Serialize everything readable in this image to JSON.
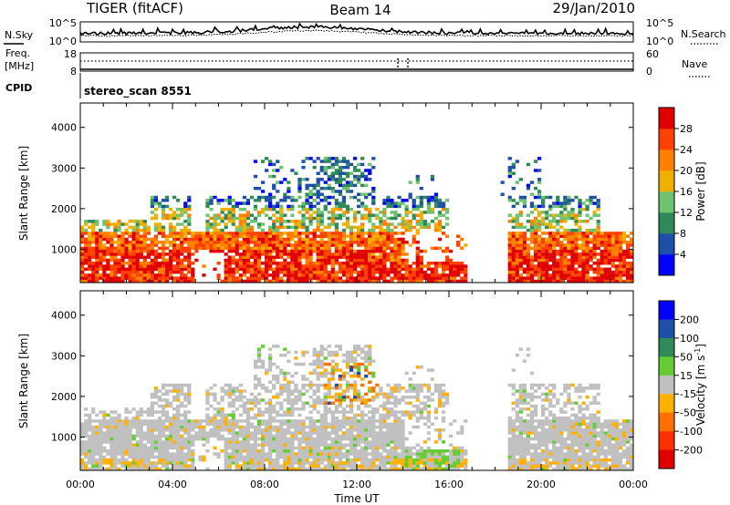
{
  "header": {
    "radar": "TIGER (fitACF)",
    "beam": "Beam 14",
    "date": "29/Jan/2010"
  },
  "noise_panel": {
    "left_label": "N.Sky",
    "right_label": "N.Search",
    "left_ticks": [
      "10^5",
      "10^0"
    ],
    "right_ticks": [
      "10^5",
      "10^0"
    ]
  },
  "freq_panel": {
    "left_label_line1": "Freq.",
    "left_label_line2": "[MHz]",
    "right_label": "Nave",
    "left_ticks": [
      "18",
      "8"
    ],
    "right_ticks": [
      "60",
      "0"
    ]
  },
  "cpid_panel": {
    "label": "CPID",
    "program": "stereo_scan 8551"
  },
  "colors": {
    "power_scale": [
      "#0000ff",
      "#1f4fa8",
      "#2e8b57",
      "#6fc26f",
      "#f0b000",
      "#ff8000",
      "#ff4000",
      "#e00000"
    ],
    "velocity_scale": [
      "#0000ff",
      "#1f4fa8",
      "#2e8b57",
      "#66cc33",
      "#c0c0c0",
      "#ffb000",
      "#ff7000",
      "#ff3000",
      "#e00000"
    ],
    "ground_scatter": "#c0c0c0"
  },
  "chart_data": [
    {
      "type": "heatmap",
      "name": "power",
      "ylabel": "Slant Range [km]",
      "yticks": [
        "1000",
        "2000",
        "3000",
        "4000"
      ],
      "ylim": [
        180,
        4600
      ],
      "xlim_hours": [
        0,
        24
      ],
      "colorbar": {
        "label": "Power [dB]",
        "ticks": [
          "4",
          "8",
          "12",
          "16",
          "20",
          "24",
          "28"
        ],
        "range": [
          0,
          32
        ]
      }
    },
    {
      "type": "heatmap",
      "name": "velocity",
      "ylabel": "Slant Range [km]",
      "yticks": [
        "1000",
        "2000",
        "3000",
        "4000"
      ],
      "ylim": [
        180,
        4600
      ],
      "xlabel": "Time UT",
      "xticks": [
        "00:00",
        "04:00",
        "08:00",
        "12:00",
        "16:00",
        "20:00",
        "00:00"
      ],
      "colorbar": {
        "label": "Velocity [m s",
        "label_sup": "-1",
        "label_end": "]",
        "ticks": [
          "200",
          "100",
          "50",
          "15",
          "-15",
          "-50",
          "-100",
          "-200"
        ]
      }
    }
  ]
}
